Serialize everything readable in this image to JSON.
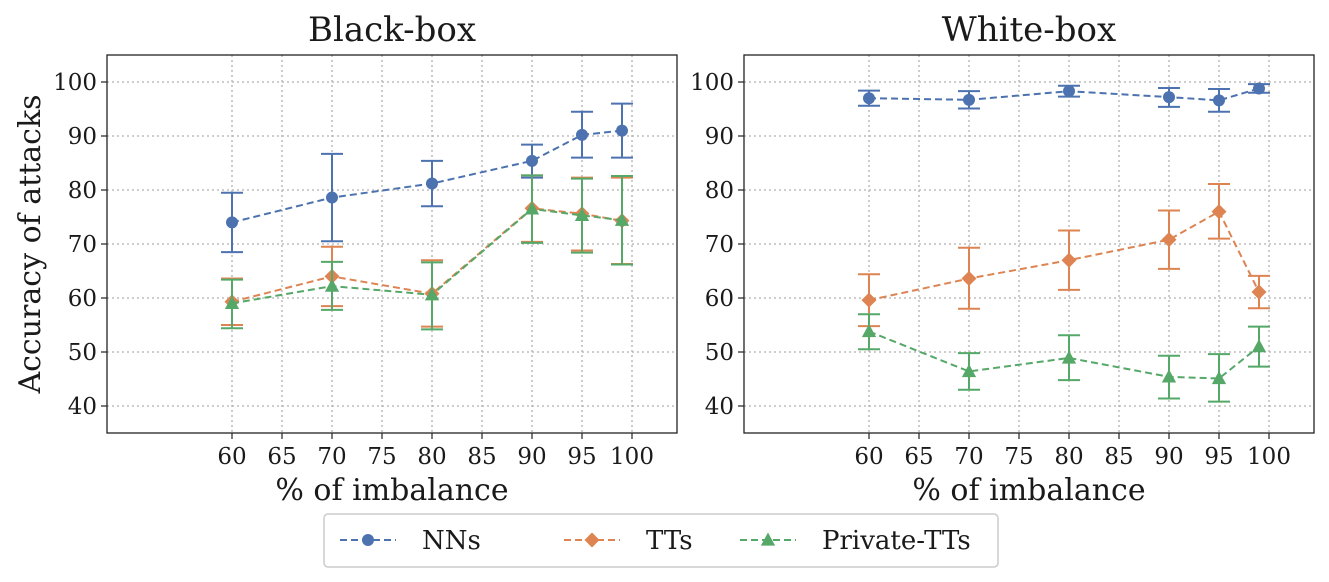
{
  "chart_data": [
    {
      "type": "line",
      "title": "Black-box",
      "xlabel": "% of imbalance",
      "ylabel": "Accuracy of attacks",
      "xlim": [
        47.5,
        104.5
      ],
      "ylim": [
        35,
        105
      ],
      "xticks": [
        60,
        65,
        70,
        75,
        80,
        85,
        90,
        95,
        100
      ],
      "yticks": [
        40,
        50,
        60,
        70,
        80,
        90,
        100
      ],
      "grid": true,
      "series": [
        {
          "name": "NNs",
          "color": "#4c72b0",
          "marker": "circle",
          "x": [
            60,
            70,
            80,
            90,
            95,
            99
          ],
          "values": [
            74.0,
            78.6,
            81.2,
            85.4,
            90.2,
            91.0
          ],
          "err_low": [
            68.5,
            70.5,
            77.0,
            82.3,
            86.0,
            86.0
          ],
          "err_high": [
            79.5,
            86.7,
            85.4,
            88.4,
            94.5,
            96.0
          ]
        },
        {
          "name": "TTs",
          "color": "#dd8452",
          "marker": "diamond",
          "x": [
            60,
            70,
            80,
            90,
            95,
            99
          ],
          "values": [
            59.3,
            64.0,
            60.8,
            76.6,
            75.6,
            74.3
          ],
          "err_low": [
            55.0,
            58.5,
            54.7,
            70.4,
            68.8,
            66.3
          ],
          "err_high": [
            63.6,
            69.5,
            67.0,
            82.7,
            82.3,
            82.3
          ]
        },
        {
          "name": "Private-TTs",
          "color": "#55a868",
          "marker": "triangle",
          "x": [
            60,
            70,
            80,
            90,
            95,
            99
          ],
          "values": [
            59.0,
            62.2,
            60.6,
            76.5,
            75.3,
            74.4
          ],
          "err_low": [
            54.4,
            57.8,
            54.2,
            70.2,
            68.4,
            66.2
          ],
          "err_high": [
            63.4,
            66.7,
            66.6,
            82.7,
            82.1,
            82.6
          ]
        }
      ]
    },
    {
      "type": "line",
      "title": "White-box",
      "xlabel": "% of imbalance",
      "ylabel": "",
      "xlim": [
        47.5,
        104.5
      ],
      "ylim": [
        35,
        105
      ],
      "xticks": [
        60,
        65,
        70,
        75,
        80,
        85,
        90,
        95,
        100
      ],
      "yticks": [
        40,
        50,
        60,
        70,
        80,
        90,
        100
      ],
      "grid": true,
      "series": [
        {
          "name": "NNs",
          "color": "#4c72b0",
          "marker": "circle",
          "x": [
            60,
            70,
            80,
            90,
            95,
            99
          ],
          "values": [
            97.0,
            96.7,
            98.3,
            97.2,
            96.6,
            98.8
          ],
          "err_low": [
            95.6,
            95.1,
            97.3,
            95.4,
            94.5,
            98.0
          ],
          "err_high": [
            98.4,
            98.3,
            99.3,
            98.9,
            98.7,
            99.6
          ]
        },
        {
          "name": "TTs",
          "color": "#dd8452",
          "marker": "diamond",
          "x": [
            60,
            70,
            80,
            90,
            95,
            99
          ],
          "values": [
            59.6,
            63.6,
            67.0,
            70.8,
            76.0,
            61.1
          ],
          "err_low": [
            54.8,
            58.0,
            61.5,
            65.4,
            71.0,
            58.1
          ],
          "err_high": [
            64.4,
            69.3,
            72.5,
            76.2,
            81.1,
            64.1
          ]
        },
        {
          "name": "Private-TTs",
          "color": "#55a868",
          "marker": "triangle",
          "x": [
            60,
            70,
            80,
            90,
            95,
            99
          ],
          "values": [
            53.8,
            46.4,
            48.9,
            45.4,
            45.1,
            51.0
          ],
          "err_low": [
            50.5,
            43.0,
            44.8,
            41.4,
            40.8,
            47.3
          ],
          "err_high": [
            57.0,
            49.8,
            53.1,
            49.3,
            49.6,
            54.7
          ]
        }
      ]
    }
  ],
  "legend": {
    "placement": "bottom-center",
    "entries": [
      {
        "label": "NNs",
        "color": "#4c72b0",
        "marker": "circle"
      },
      {
        "label": "TTs",
        "color": "#dd8452",
        "marker": "diamond"
      },
      {
        "label": "Private-TTs",
        "color": "#55a868",
        "marker": "triangle"
      }
    ]
  }
}
